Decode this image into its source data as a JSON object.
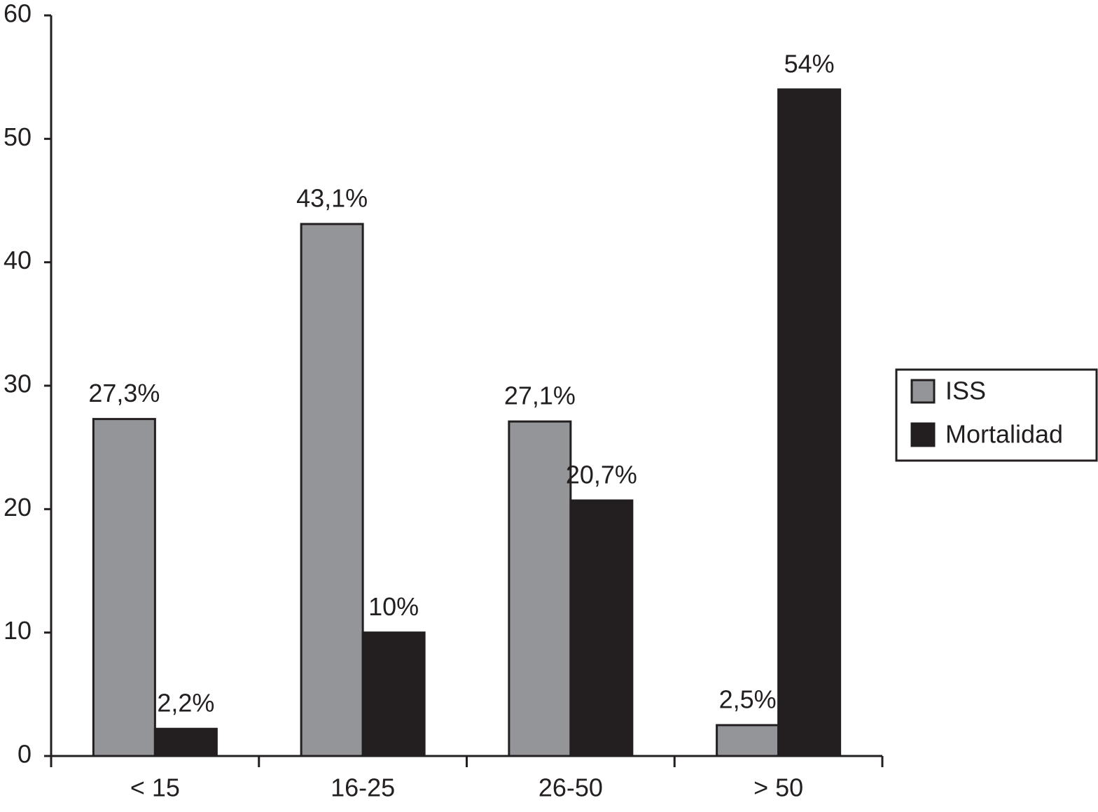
{
  "chart_data": {
    "type": "bar",
    "categories": [
      "< 15",
      "16-25",
      "26-50",
      "> 50"
    ],
    "series": [
      {
        "name": "ISS",
        "color": "#939598",
        "values": [
          27.3,
          43.1,
          27.1,
          2.5
        ],
        "value_labels": [
          "27,3%",
          "43,1%",
          "27,1%",
          "2,5%"
        ]
      },
      {
        "name": "Mortalidad",
        "color": "#231f20",
        "values": [
          2.2,
          10,
          20.7,
          54
        ],
        "value_labels": [
          "2,2%",
          "10%",
          "20,7%",
          "54%"
        ]
      }
    ],
    "ylim": [
      0,
      60
    ],
    "yticks": [
      0,
      10,
      20,
      30,
      40,
      50,
      60
    ],
    "grid": false,
    "legend": "right"
  }
}
